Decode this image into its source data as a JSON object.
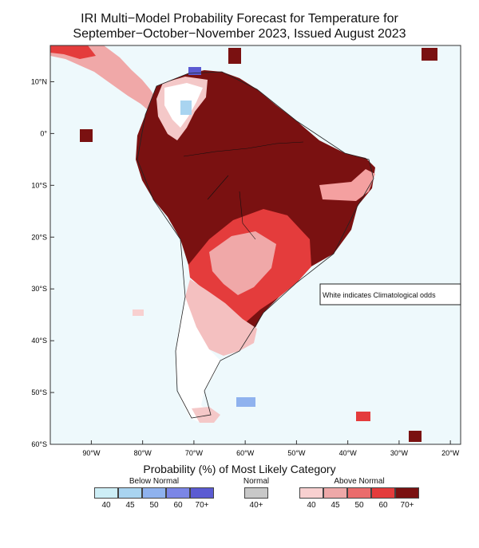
{
  "title": {
    "line1": "IRI Multi−Model Probability Forecast for Temperature for",
    "line2": "September−October−November 2023, Issued August 2023"
  },
  "map": {
    "lon_range": [
      -98,
      -18
    ],
    "lat_range": [
      -60,
      17
    ],
    "lat_ticks": [
      {
        "lat": 10,
        "label": "10°N"
      },
      {
        "lat": 0,
        "label": "0°"
      },
      {
        "lat": -10,
        "label": "10°S"
      },
      {
        "lat": -20,
        "label": "20°S"
      },
      {
        "lat": -30,
        "label": "30°S"
      },
      {
        "lat": -40,
        "label": "40°S"
      },
      {
        "lat": -50,
        "label": "50°S"
      },
      {
        "lat": -60,
        "label": "60°S"
      }
    ],
    "lon_ticks": [
      {
        "lon": -90,
        "label": "90°W"
      },
      {
        "lon": -80,
        "label": "80°W"
      },
      {
        "lon": -70,
        "label": "70°W"
      },
      {
        "lon": -60,
        "label": "60°W"
      },
      {
        "lon": -50,
        "label": "50°W"
      },
      {
        "lon": -40,
        "label": "40°W"
      },
      {
        "lon": -30,
        "label": "30°W"
      },
      {
        "lon": -20,
        "label": "20°W"
      }
    ],
    "ocean_color": "#eef9fc",
    "annotation": "White indicates Climatological odds"
  },
  "legend": {
    "title": "Probability (%) of Most Likely Category",
    "below": {
      "label": "Below Normal",
      "items": [
        {
          "label": "40",
          "color": "#cdeef6"
        },
        {
          "label": "45",
          "color": "#a9d4f0"
        },
        {
          "label": "50",
          "color": "#8fb2ee"
        },
        {
          "label": "60",
          "color": "#7b86e6"
        },
        {
          "label": "70+",
          "color": "#5b5bd2"
        }
      ]
    },
    "normal": {
      "label": "Normal",
      "items": [
        {
          "label": "40+",
          "color": "#c8c8c8"
        }
      ]
    },
    "above": {
      "label": "Above Normal",
      "items": [
        {
          "label": "40",
          "color": "#f8d0d0"
        },
        {
          "label": "45",
          "color": "#eea8a8"
        },
        {
          "label": "50",
          "color": "#ea6c6c"
        },
        {
          "label": "60",
          "color": "#e43c3c"
        },
        {
          "label": "70+",
          "color": "#7a1111"
        }
      ]
    }
  }
}
